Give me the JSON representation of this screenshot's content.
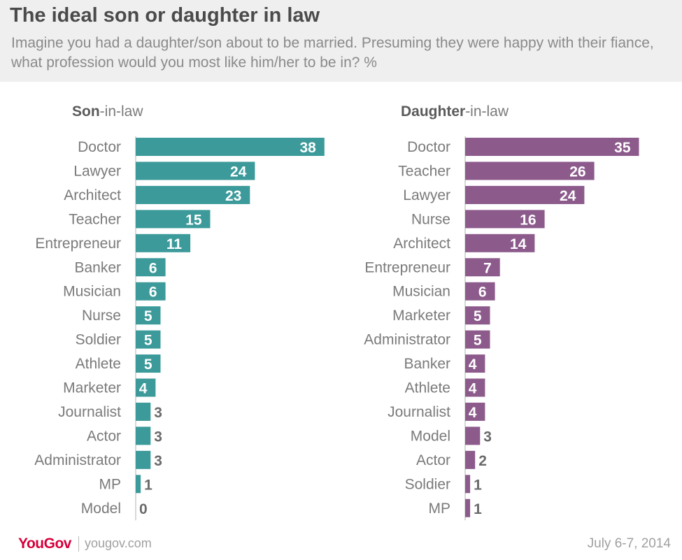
{
  "title": "The ideal son or daughter in law",
  "subtitle": "Imagine you had a daughter/son about to be married. Presuming they were happy with their fiance, what profession would you most like him/her to be in? %",
  "panels": {
    "son": {
      "bold": "Son",
      "rest": "-in-law"
    },
    "daughter": {
      "bold": "Daughter",
      "rest": "-in-law"
    }
  },
  "footer": {
    "brand": "YouGov",
    "site": "yougov.com",
    "date": "July 6-7, 2014"
  },
  "colors": {
    "son": "#3c9a9a",
    "daughter": "#8c5b8c",
    "label_inside": "#ffffff",
    "label_outside": "#6a6a6a"
  },
  "chart_data": [
    {
      "type": "bar",
      "orientation": "horizontal",
      "name": "Son-in-law",
      "categories": [
        "Doctor",
        "Lawyer",
        "Architect",
        "Teacher",
        "Entrepreneur",
        "Banker",
        "Musician",
        "Nurse",
        "Soldier",
        "Athlete",
        "Marketer",
        "Journalist",
        "Actor",
        "Administrator",
        "MP",
        "Model"
      ],
      "values": [
        38,
        24,
        23,
        15,
        11,
        6,
        6,
        5,
        5,
        5,
        4,
        3,
        3,
        3,
        1,
        0
      ]
    },
    {
      "type": "bar",
      "orientation": "horizontal",
      "name": "Daughter-in-law",
      "categories": [
        "Doctor",
        "Teacher",
        "Lawyer",
        "Nurse",
        "Architect",
        "Entrepreneur",
        "Musician",
        "Marketer",
        "Administrator",
        "Banker",
        "Athlete",
        "Journalist",
        "Model",
        "Actor",
        "Soldier",
        "MP"
      ],
      "values": [
        35,
        26,
        24,
        16,
        14,
        7,
        6,
        5,
        5,
        4,
        4,
        4,
        3,
        2,
        1,
        1
      ]
    }
  ]
}
